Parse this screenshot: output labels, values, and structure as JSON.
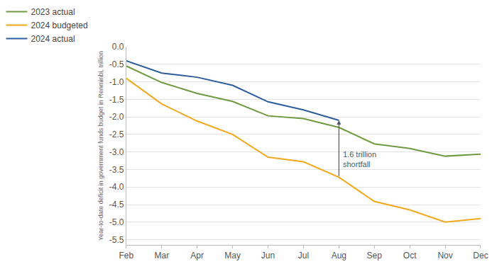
{
  "chart_data": {
    "type": "line",
    "y_label": "Year-to-date deficit in government funds budget in Renminbi, trillion",
    "categories": [
      "Feb",
      "Mar",
      "Apr",
      "May",
      "Jun",
      "Jul",
      "Aug",
      "Sep",
      "Oct",
      "Nov",
      "Dec"
    ],
    "series": [
      {
        "name": "2023 actual",
        "color": "#6f9a3f",
        "values": [
          -0.55,
          -1.02,
          -1.33,
          -1.56,
          -1.97,
          -2.05,
          -2.3,
          -2.77,
          -2.9,
          -3.12,
          -3.06
        ]
      },
      {
        "name": "2024 budgeted",
        "color": "#f2a81d",
        "values": [
          -0.9,
          -1.63,
          -2.12,
          -2.5,
          -3.15,
          -3.28,
          -3.72,
          -4.41,
          -4.65,
          -5.0,
          -4.9
        ]
      },
      {
        "name": "2024 actual",
        "color": "#2d5c9e",
        "values": [
          -0.4,
          -0.75,
          -0.87,
          -1.1,
          -1.57,
          -1.8,
          -2.1,
          null,
          null,
          null,
          null
        ]
      }
    ],
    "ylim": [
      -5.65,
      0
    ],
    "yticks": [
      {
        "value": 0,
        "label": "0.0"
      },
      -0.5,
      {
        "value": -1,
        "label": "-1.0"
      },
      -1.5,
      {
        "value": -2,
        "label": "-2.0"
      },
      -2.5,
      {
        "value": -3,
        "label": "-3.0"
      },
      -3.5,
      {
        "value": -4,
        "label": "-4.0"
      },
      -4.5,
      {
        "value": -5,
        "label": "-5.0"
      },
      -5.5
    ],
    "grid": true,
    "legend": "top-left",
    "annotations": [
      {
        "text": "1.6 trillion\nshortfall",
        "x": "Aug",
        "y_from": -3.72,
        "y_to": -2.1
      }
    ]
  }
}
